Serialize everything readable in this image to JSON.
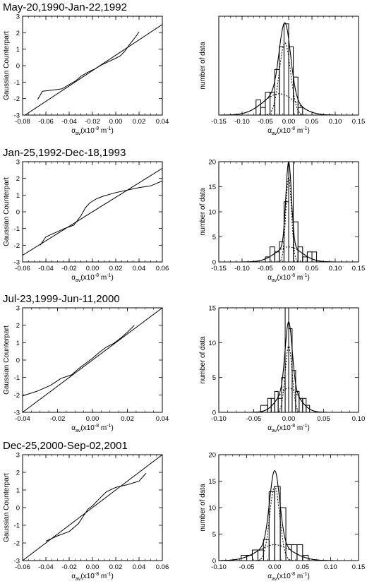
{
  "chart_data": [
    {
      "type": "line",
      "title": "May-20,1990-Jan-22,1992",
      "xlabel": "α_av(x10^-8 m^-1)",
      "ylabel": "Gaussian Counterpart",
      "xlim": [
        -0.08,
        0.04
      ],
      "ylim": [
        -3,
        3
      ],
      "xticks": [
        -0.08,
        -0.06,
        -0.04,
        -0.02,
        0.0,
        0.02,
        0.04
      ],
      "yticks": [
        -3,
        -2,
        -1,
        0,
        1,
        2,
        3
      ],
      "reference_line": [
        [
          -0.08,
          -3.1
        ],
        [
          0.04,
          2.5
        ]
      ],
      "x": [
        -0.067,
        -0.063,
        -0.05,
        -0.046,
        -0.04,
        -0.034,
        -0.03,
        -0.024,
        -0.018,
        -0.012,
        -0.006,
        0.0,
        0.004,
        0.008,
        0.012,
        0.016,
        0.02
      ],
      "y": [
        -2.05,
        -1.55,
        -1.45,
        -1.4,
        -1.15,
        -0.9,
        -0.65,
        -0.4,
        -0.2,
        0.05,
        0.25,
        0.45,
        0.6,
        0.9,
        1.3,
        1.65,
        2.05
      ]
    },
    {
      "type": "histogram",
      "xlabel": "α_av(x10^-8 m^-1)",
      "ylabel": "number of data",
      "xlim": [
        -0.15,
        0.15
      ],
      "ylim": [
        0,
        13
      ],
      "xticks": [
        -0.15,
        -0.1,
        -0.05,
        0.0,
        0.05,
        0.1,
        0.15
      ],
      "yticks": [],
      "bin_edges": [
        -0.07,
        -0.06,
        -0.05,
        -0.04,
        -0.03,
        -0.02,
        -0.01,
        0.0,
        0.01,
        0.02,
        0.03
      ],
      "counts": [
        2,
        1,
        3,
        3,
        6,
        9,
        12,
        9,
        5,
        1
      ],
      "fit_peak": 11.5,
      "fit_center": -0.008,
      "narrow_component": {
        "amplitude": 9.5,
        "center": -0.008,
        "sigma": 0.012
      },
      "broad_component": {
        "amplitude": 2.8,
        "center": -0.02,
        "sigma": 0.035
      }
    },
    {
      "type": "line",
      "title": "Jan-25,1992-Dec-18,1993",
      "xlabel": "α_av(x10^-8 m^-1)",
      "ylabel": "Gaussian Counterpart",
      "xlim": [
        -0.06,
        0.06
      ],
      "ylim": [
        -3,
        3
      ],
      "xticks": [
        -0.06,
        -0.04,
        -0.02,
        0.0,
        0.02,
        0.04,
        0.06
      ],
      "yticks": [
        -3,
        -2,
        -1,
        0,
        1,
        2,
        3
      ],
      "reference_line": [
        [
          -0.06,
          -2.6
        ],
        [
          0.06,
          2.6
        ]
      ],
      "x": [
        -0.045,
        -0.04,
        -0.032,
        -0.024,
        -0.016,
        -0.01,
        -0.006,
        -0.002,
        0.004,
        0.01,
        0.02,
        0.03,
        0.04,
        0.05,
        0.06
      ],
      "y": [
        -2.0,
        -1.5,
        -1.25,
        -1.0,
        -0.8,
        -0.25,
        0.25,
        0.55,
        0.8,
        0.95,
        1.15,
        1.3,
        1.45,
        1.55,
        1.85
      ]
    },
    {
      "type": "histogram",
      "xlabel": "α_av(x10^-8 m^-1)",
      "ylabel": "number of data",
      "xlim": [
        -0.15,
        0.15
      ],
      "ylim": [
        0,
        20
      ],
      "xticks": [
        -0.15,
        -0.1,
        -0.05,
        0.0,
        0.05,
        0.1,
        0.15
      ],
      "yticks": [
        0,
        5,
        10,
        15,
        20
      ],
      "bin_edges": [
        -0.06,
        -0.05,
        -0.04,
        -0.03,
        -0.02,
        -0.01,
        0.0,
        0.01,
        0.02,
        0.03,
        0.04,
        0.05,
        0.06
      ],
      "counts": [
        0,
        1,
        3,
        2,
        4,
        12,
        20,
        8,
        3,
        1,
        2,
        2
      ],
      "fit_peak": 20,
      "fit_center": 0.0,
      "narrow_component": {
        "amplitude": 17.0,
        "center": 0.0,
        "sigma": 0.006
      },
      "broad_component": {
        "amplitude": 3.0,
        "center": 0.0,
        "sigma": 0.028
      }
    },
    {
      "type": "line",
      "title": "Jul-23,1999-Jun-11,2000",
      "xlabel": "α_av(x10^-8 m^-1)",
      "ylabel": "Gaussian Counterpart",
      "xlim": [
        -0.04,
        0.04
      ],
      "ylim": [
        -3,
        3
      ],
      "xticks": [
        -0.04,
        -0.02,
        0.0,
        0.02,
        0.04
      ],
      "yticks": [
        -3,
        -2,
        -1,
        0,
        1,
        2,
        3
      ],
      "reference_line": [
        [
          -0.04,
          -3.0
        ],
        [
          0.04,
          3.0
        ]
      ],
      "x": [
        -0.04,
        -0.032,
        -0.024,
        -0.018,
        -0.012,
        -0.008,
        -0.004,
        0.0,
        0.004,
        0.008,
        0.012,
        0.016,
        0.02,
        0.024
      ],
      "y": [
        -2.05,
        -1.8,
        -1.45,
        -1.05,
        -0.85,
        -0.5,
        -0.2,
        0.1,
        0.45,
        0.75,
        0.95,
        1.25,
        1.6,
        2.0
      ]
    },
    {
      "type": "histogram",
      "xlabel": "α_av(x10^-8 m^-1)",
      "ylabel": "number of data",
      "xlim": [
        -0.1,
        0.1
      ],
      "ylim": [
        0,
        15
      ],
      "xticks": [
        -0.1,
        -0.05,
        0.0,
        0.05,
        0.1
      ],
      "yticks": [
        0,
        5,
        10,
        15
      ],
      "bin_edges": [
        -0.04,
        -0.03,
        -0.025,
        -0.02,
        -0.015,
        -0.01,
        -0.005,
        0.0,
        0.005,
        0.01,
        0.015,
        0.02,
        0.025,
        0.03
      ],
      "counts": [
        1,
        2,
        2,
        3,
        2,
        5,
        15,
        12,
        6,
        3,
        2,
        2,
        1
      ],
      "fit_peak": 13,
      "fit_center": 0.0,
      "narrow_component": {
        "amplitude": 9.5,
        "center": 0.0,
        "sigma": 0.005
      },
      "broad_component": {
        "amplitude": 3.5,
        "center": 0.0,
        "sigma": 0.015
      }
    },
    {
      "type": "line",
      "title": "Dec-25,2000-Sep-02,2001",
      "xlabel": "α_av(x10^-8 m^-1)",
      "ylabel": "Gaussian Counterpart",
      "xlim": [
        -0.06,
        0.06
      ],
      "ylim": [
        -3,
        3
      ],
      "xticks": [
        -0.06,
        -0.04,
        -0.02,
        0.0,
        0.02,
        0.04,
        0.06
      ],
      "yticks": [
        -3,
        -2,
        -1,
        0,
        1,
        2,
        3
      ],
      "reference_line": [
        [
          -0.06,
          -3.0
        ],
        [
          0.06,
          3.0
        ]
      ],
      "x": [
        -0.04,
        -0.03,
        -0.02,
        -0.012,
        -0.008,
        -0.004,
        0.0,
        0.005,
        0.012,
        0.02,
        0.03,
        0.04,
        0.046
      ],
      "y": [
        -1.9,
        -1.6,
        -1.35,
        -0.9,
        -0.5,
        -0.1,
        0.1,
        0.45,
        0.9,
        1.15,
        1.3,
        1.5,
        1.95
      ]
    },
    {
      "type": "histogram",
      "xlabel": "α_av(x10^-8 m^-1)",
      "ylabel": "number of data",
      "xlim": [
        -0.1,
        0.15
      ],
      "ylim": [
        0,
        20
      ],
      "xticks": [
        -0.1,
        -0.05,
        0.0,
        0.05,
        0.1,
        0.15
      ],
      "yticks": [
        0,
        5,
        10,
        15,
        20
      ],
      "bin_edges": [
        -0.06,
        -0.05,
        -0.04,
        -0.03,
        -0.02,
        -0.01,
        0.0,
        0.01,
        0.02,
        0.03,
        0.04,
        0.05,
        0.06
      ],
      "counts": [
        1,
        1,
        2,
        2,
        4,
        13,
        14,
        10,
        3,
        3,
        3,
        1
      ],
      "fit_peak": 17,
      "fit_center": 0.0,
      "narrow_component": {
        "amplitude": 14.0,
        "center": 0.0,
        "sigma": 0.009
      },
      "broad_component": {
        "amplitude": 3.0,
        "center": 0.0,
        "sigma": 0.03
      }
    }
  ]
}
